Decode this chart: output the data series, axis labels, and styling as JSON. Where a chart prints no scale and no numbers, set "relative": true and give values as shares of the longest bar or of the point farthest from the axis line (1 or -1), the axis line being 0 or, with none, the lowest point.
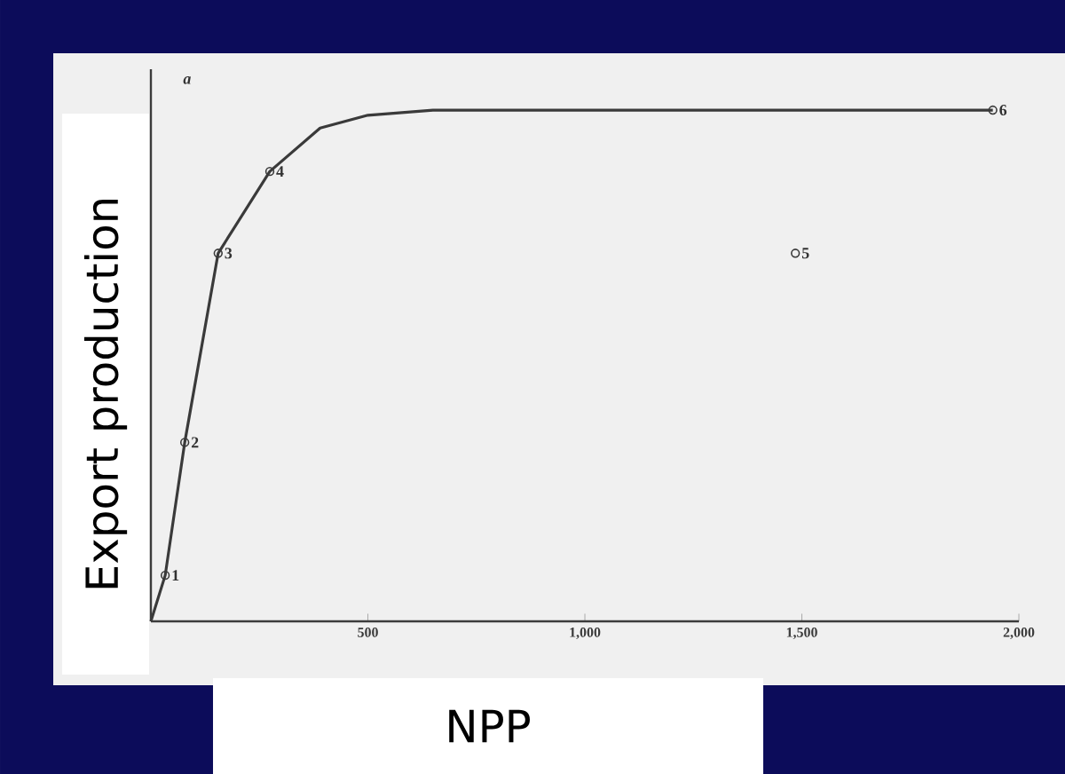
{
  "chart_data": {
    "type": "line",
    "xlabel": "NPP",
    "ylabel": "Export production",
    "relative": true,
    "xlim": [
      0,
      2000
    ],
    "xticks": [
      500,
      {
        "value": 1000,
        "label": "1,000"
      },
      {
        "value": 1500,
        "label": "1,500"
      },
      {
        "value": 2000,
        "label": "2,000"
      }
    ],
    "series": [
      {
        "color": "#3a3a3a",
        "marker": "none",
        "line_style": "solid",
        "x": [
          0,
          33,
          78,
          155,
          274,
          390,
          500,
          650,
          800,
          1940
        ],
        "values": [
          0,
          0.09,
          0.35,
          0.72,
          0.88,
          0.965,
          0.99,
          1.0,
          1.0,
          1.0
        ]
      },
      {
        "type": "scatter",
        "color": "#3a3a3a",
        "marker": "circle",
        "x": [
          33,
          78,
          155,
          274,
          1485,
          1940
        ],
        "values": [
          0.09,
          0.35,
          0.72,
          0.88,
          0.72,
          1.0
        ]
      }
    ],
    "annotations": [
      "a",
      {
        "text": "1",
        "x": 33,
        "y": 0.09
      },
      {
        "text": "2",
        "x": 78,
        "y": 0.35
      },
      {
        "text": "3",
        "x": 155,
        "y": 0.72
      },
      {
        "text": "4",
        "x": 274,
        "y": 0.88
      },
      {
        "text": "5",
        "x": 1485,
        "y": 0.72
      },
      {
        "text": "6",
        "x": 1940,
        "y": 1.0
      }
    ],
    "grid": false
  }
}
